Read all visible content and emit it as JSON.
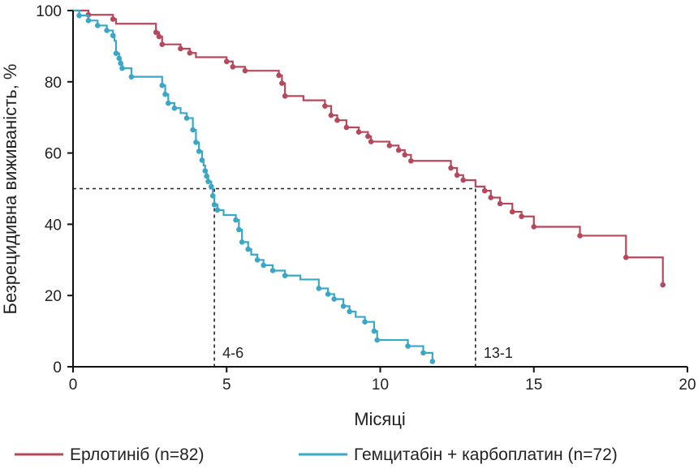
{
  "chart_data": {
    "type": "line",
    "title": "",
    "xlabel": "Місяці",
    "ylabel": "Безрецидивна виживаність, %",
    "xlim": [
      0,
      20
    ],
    "ylim": [
      0,
      100
    ],
    "xticks": [
      "0",
      "5",
      "10",
      "15",
      "20"
    ],
    "yticks": [
      "0",
      "20",
      "40",
      "60",
      "80",
      "100"
    ],
    "grid": false,
    "legend_position": "bottom",
    "reference": {
      "y": 50,
      "label": ""
    },
    "annotations": [
      {
        "x": 4.6,
        "label": "4-6"
      },
      {
        "x": 13.1,
        "label": "13-1"
      }
    ],
    "series": [
      {
        "name": "Ерлотиніб (n=82)",
        "color": "#b5495b",
        "steps": [
          [
            0,
            100
          ],
          [
            0.5,
            98.8
          ],
          [
            1.3,
            97.6
          ],
          [
            1.4,
            96.3
          ],
          [
            2.7,
            93.9
          ],
          [
            2.8,
            92.7
          ],
          [
            2.9,
            90.5
          ],
          [
            3.5,
            89.3
          ],
          [
            3.8,
            88.1
          ],
          [
            4.0,
            86.9
          ],
          [
            5.0,
            85.7
          ],
          [
            5.2,
            84.2
          ],
          [
            5.6,
            83.1
          ],
          [
            6.7,
            81.8
          ],
          [
            6.8,
            79.6
          ],
          [
            6.9,
            76.0
          ],
          [
            7.5,
            74.8
          ],
          [
            8.2,
            73.2
          ],
          [
            8.4,
            70.6
          ],
          [
            8.6,
            69.2
          ],
          [
            8.9,
            67.2
          ],
          [
            9.3,
            65.9
          ],
          [
            9.6,
            64.7
          ],
          [
            9.7,
            63.2
          ],
          [
            10.3,
            62.1
          ],
          [
            10.6,
            60.8
          ],
          [
            10.8,
            59.5
          ],
          [
            11.0,
            57.8
          ],
          [
            12.3,
            55.8
          ],
          [
            12.5,
            53.8
          ],
          [
            12.7,
            52.4
          ],
          [
            13.1,
            50.6
          ],
          [
            13.4,
            49.4
          ],
          [
            13.6,
            47.5
          ],
          [
            13.9,
            45.8
          ],
          [
            14.3,
            43.5
          ],
          [
            14.6,
            42.2
          ],
          [
            15.0,
            39.3
          ],
          [
            16.5,
            36.8
          ],
          [
            18.0,
            30.7
          ],
          [
            19.2,
            23.0
          ]
        ],
        "censored": [
          [
            0.5,
            98.8
          ],
          [
            1.3,
            97.6
          ],
          [
            2.7,
            93.9
          ],
          [
            2.8,
            92.7
          ],
          [
            2.9,
            90.5
          ],
          [
            3.5,
            89.3
          ],
          [
            3.8,
            88.1
          ],
          [
            5.0,
            85.7
          ],
          [
            5.2,
            84.2
          ],
          [
            5.6,
            83.1
          ],
          [
            6.7,
            81.8
          ],
          [
            6.8,
            79.6
          ],
          [
            6.9,
            76.0
          ],
          [
            8.2,
            73.2
          ],
          [
            8.4,
            70.6
          ],
          [
            8.6,
            69.2
          ],
          [
            8.9,
            67.2
          ],
          [
            9.3,
            65.9
          ],
          [
            9.6,
            64.7
          ],
          [
            9.7,
            63.2
          ],
          [
            10.3,
            62.1
          ],
          [
            10.6,
            60.8
          ],
          [
            10.8,
            59.5
          ],
          [
            11.0,
            57.8
          ],
          [
            12.3,
            55.8
          ],
          [
            12.5,
            53.8
          ],
          [
            12.7,
            52.4
          ],
          [
            13.4,
            49.4
          ],
          [
            13.6,
            47.5
          ],
          [
            13.9,
            45.8
          ],
          [
            14.3,
            43.5
          ],
          [
            14.6,
            42.2
          ],
          [
            15.0,
            39.3
          ],
          [
            16.5,
            36.8
          ],
          [
            18.0,
            30.7
          ],
          [
            19.2,
            23.0
          ]
        ]
      },
      {
        "name": "Гемцитабін + карбоплатин (n=72)",
        "color": "#3aa7c7",
        "steps": [
          [
            0,
            100
          ],
          [
            0.2,
            98.6
          ],
          [
            0.5,
            97.2
          ],
          [
            0.8,
            95.8
          ],
          [
            1.1,
            94.4
          ],
          [
            1.3,
            93.0
          ],
          [
            1.35,
            91.5
          ],
          [
            1.4,
            88.0
          ],
          [
            1.5,
            86.6
          ],
          [
            1.55,
            85.2
          ],
          [
            1.6,
            83.8
          ],
          [
            1.9,
            81.4
          ],
          [
            2.9,
            79.0
          ],
          [
            3.0,
            76.5
          ],
          [
            3.1,
            74.0
          ],
          [
            3.3,
            72.6
          ],
          [
            3.5,
            71.2
          ],
          [
            3.7,
            69.8
          ],
          [
            3.9,
            66.5
          ],
          [
            4.0,
            63.0
          ],
          [
            4.1,
            60.5
          ],
          [
            4.2,
            58.0
          ],
          [
            4.25,
            56.5
          ],
          [
            4.3,
            55.0
          ],
          [
            4.35,
            53.5
          ],
          [
            4.4,
            52.0
          ],
          [
            4.5,
            50.6
          ],
          [
            4.55,
            48.0
          ],
          [
            4.6,
            45.5
          ],
          [
            4.7,
            44.0
          ],
          [
            4.9,
            42.6
          ],
          [
            5.3,
            41.2
          ],
          [
            5.4,
            38.5
          ],
          [
            5.5,
            35.0
          ],
          [
            5.7,
            33.0
          ],
          [
            5.8,
            31.5
          ],
          [
            6.0,
            30.0
          ],
          [
            6.2,
            28.5
          ],
          [
            6.5,
            27.0
          ],
          [
            6.9,
            25.6
          ],
          [
            7.4,
            24.5
          ],
          [
            8.0,
            22.0
          ],
          [
            8.3,
            20.4
          ],
          [
            8.5,
            19.0
          ],
          [
            8.8,
            17.0
          ],
          [
            9.0,
            15.5
          ],
          [
            9.2,
            14.0
          ],
          [
            9.5,
            12.6
          ],
          [
            9.8,
            10.0
          ],
          [
            9.9,
            7.5
          ],
          [
            10.9,
            5.8
          ],
          [
            11.4,
            3.9
          ],
          [
            11.7,
            1.5
          ]
        ],
        "censored": [
          [
            0.2,
            98.6
          ],
          [
            0.5,
            97.2
          ],
          [
            0.8,
            95.8
          ],
          [
            1.1,
            94.4
          ],
          [
            1.3,
            93.0
          ],
          [
            1.4,
            88.0
          ],
          [
            1.5,
            86.6
          ],
          [
            1.55,
            85.2
          ],
          [
            1.6,
            83.8
          ],
          [
            1.9,
            81.4
          ],
          [
            2.9,
            79.0
          ],
          [
            3.0,
            76.5
          ],
          [
            3.1,
            74.0
          ],
          [
            3.3,
            72.6
          ],
          [
            3.7,
            69.8
          ],
          [
            3.9,
            66.5
          ],
          [
            4.0,
            63.0
          ],
          [
            4.1,
            60.5
          ],
          [
            4.2,
            58.0
          ],
          [
            4.3,
            55.0
          ],
          [
            4.35,
            53.5
          ],
          [
            4.4,
            52.0
          ],
          [
            4.5,
            50.6
          ],
          [
            4.55,
            48.0
          ],
          [
            4.6,
            45.5
          ],
          [
            4.7,
            44.0
          ],
          [
            5.3,
            41.2
          ],
          [
            5.4,
            38.5
          ],
          [
            5.5,
            35.0
          ],
          [
            5.7,
            33.0
          ],
          [
            6.0,
            30.0
          ],
          [
            6.2,
            28.5
          ],
          [
            6.5,
            27.0
          ],
          [
            6.9,
            25.6
          ],
          [
            8.0,
            22.0
          ],
          [
            8.3,
            20.4
          ],
          [
            8.5,
            19.0
          ],
          [
            8.8,
            17.0
          ],
          [
            9.0,
            15.5
          ],
          [
            9.5,
            12.6
          ],
          [
            9.8,
            10.0
          ],
          [
            9.9,
            7.5
          ],
          [
            10.9,
            5.8
          ],
          [
            11.4,
            3.9
          ],
          [
            11.7,
            1.5
          ]
        ]
      }
    ]
  }
}
